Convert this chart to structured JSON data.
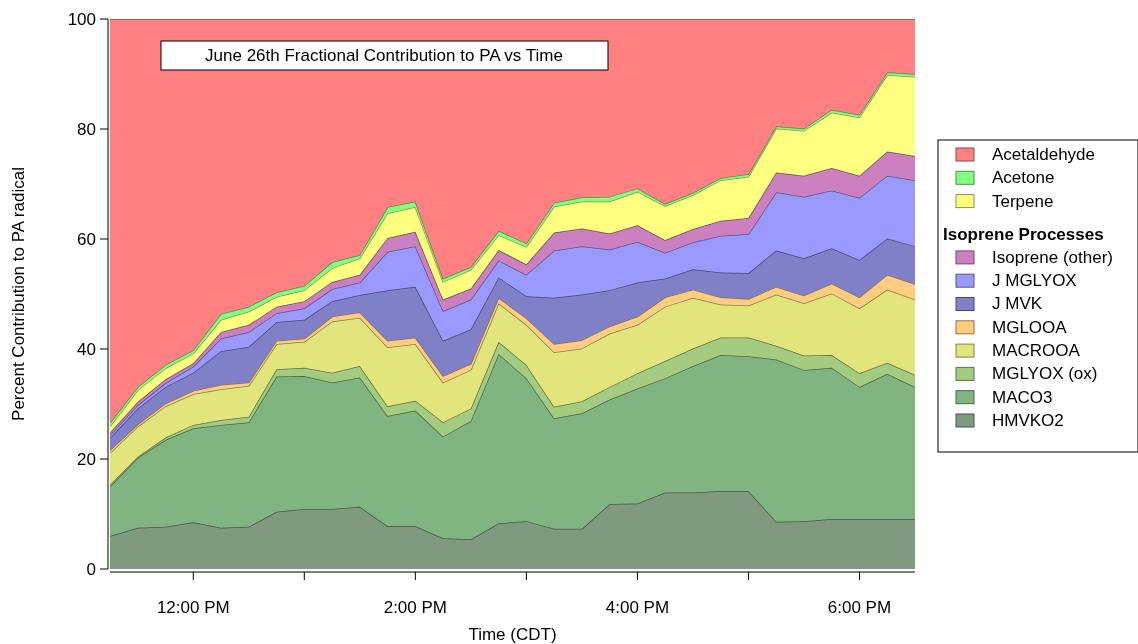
{
  "chart_data": {
    "type": "area",
    "stacked": true,
    "title": "June 26th Fractional Contribution to PA vs Time",
    "xlabel": "Time (CDT)",
    "ylabel": "Percent Contribution to PA radical",
    "legend_title": "Isoprene Processes",
    "legend": "right",
    "grid": false,
    "x": [
      11.25,
      11.5,
      11.75,
      12,
      12.25,
      12.5,
      12.75,
      13,
      13.25,
      13.5,
      13.75,
      14,
      14.25,
      14.5,
      14.75,
      15,
      15.25,
      15.5,
      15.75,
      16,
      16.25,
      16.5,
      16.75,
      17,
      17.25,
      17.5,
      17.75,
      18,
      18.25,
      18.5
    ],
    "xlim": [
      11.25,
      18.5
    ],
    "xticks": [
      {
        "value": 12,
        "label": "12:00 PM"
      },
      {
        "value": 13,
        "label": null
      },
      {
        "value": 14,
        "label": "2:00 PM"
      },
      {
        "value": 15,
        "label": null
      },
      {
        "value": 16,
        "label": "4:00 PM"
      },
      {
        "value": 17,
        "label": null
      },
      {
        "value": 18,
        "label": "6:00 PM"
      }
    ],
    "ylim": [
      0,
      100
    ],
    "yticks": [
      0,
      20,
      40,
      60,
      80,
      100
    ],
    "series": [
      {
        "name": "HMVKO2",
        "color": "#7f9a7f",
        "values": [
          6,
          7.5,
          7.7,
          8.5,
          7.5,
          7.7,
          10.4,
          10.9,
          10.9,
          11.3,
          7.8,
          7.8,
          5.6,
          5.4,
          8.3,
          8.7,
          7.3,
          7.3,
          11.8,
          11.9,
          13.9,
          13.9,
          14.2,
          14.2,
          8.6,
          8.7,
          9.1,
          9.1,
          9.1,
          9.1
        ]
      },
      {
        "name": "MACO3",
        "color": "#80b480",
        "values": [
          9,
          12.7,
          15.8,
          17.1,
          18.7,
          19,
          24.6,
          24.2,
          23,
          23.5,
          20,
          21,
          18.5,
          21.5,
          30.8,
          26,
          20.1,
          21,
          19,
          20.9,
          20.8,
          23,
          24.7,
          24.5,
          29.5,
          27.5,
          27.5,
          24,
          26.4,
          24
        ]
      },
      {
        "name": "MGLYOX (ox)",
        "color": "#a4cc80",
        "values": [
          0.3,
          0.2,
          0.4,
          0.6,
          0.9,
          1,
          1.3,
          1.5,
          1.8,
          2.1,
          1.8,
          1.8,
          2.6,
          2.3,
          2.2,
          2.4,
          2.1,
          2.2,
          2.3,
          2.8,
          3.1,
          3.2,
          3.2,
          3.4,
          2.5,
          2.6,
          2.3,
          2.5,
          2,
          2.2
        ]
      },
      {
        "name": "MACROOA",
        "color": "#e2e47c",
        "values": [
          5.8,
          5.5,
          5.7,
          5.6,
          5.6,
          5.6,
          4.6,
          4.7,
          9.3,
          8.8,
          10.7,
          10.3,
          7.2,
          7,
          7,
          7.3,
          9.9,
          9.6,
          9.7,
          8.8,
          9.9,
          9.2,
          6,
          5.8,
          9.3,
          9.5,
          11.2,
          11.8,
          13.3,
          13.7
        ]
      },
      {
        "name": "MGLOOA",
        "color": "#ffcc80",
        "values": [
          0.5,
          0.4,
          0.5,
          0.6,
          0.8,
          0.6,
          0.6,
          0.6,
          0.9,
          1,
          1.2,
          1.2,
          1.2,
          1.1,
          1,
          1.2,
          1.5,
          1.5,
          1.3,
          1.5,
          1.7,
          1.5,
          1.3,
          1.2,
          1.4,
          1.4,
          1.8,
          2,
          2.7,
          2.8
        ]
      },
      {
        "name": "J MVK",
        "color": "#8080c8",
        "values": [
          2.2,
          2.9,
          3,
          3.3,
          6.1,
          6.5,
          3.4,
          3.4,
          2.8,
          3.1,
          9.2,
          9.2,
          6.4,
          6.3,
          3.7,
          4,
          8.4,
          8.3,
          6.6,
          6.2,
          3.4,
          3.7,
          4.5,
          4.7,
          6.6,
          6.8,
          6.4,
          6.8,
          6.6,
          6.9
        ]
      },
      {
        "name": "J MGLYOX",
        "color": "#9999ff",
        "values": [
          0.5,
          0.6,
          0.7,
          1.1,
          2.3,
          2.7,
          1.6,
          2.1,
          2.2,
          2.3,
          7,
          7.4,
          5.4,
          5.4,
          3.1,
          3.9,
          8.6,
          8.8,
          7.4,
          7.4,
          4.7,
          4.9,
          6.7,
          7.1,
          10.6,
          11.2,
          10.5,
          11.3,
          11.4,
          12
        ]
      },
      {
        "name": "Isoprene (other)",
        "color": "#cc80c0",
        "values": [
          0.5,
          0.6,
          0.7,
          0.6,
          1.2,
          1.3,
          1.2,
          1.3,
          1.3,
          1.4,
          2.5,
          2.6,
          2.1,
          2,
          1.9,
          1.9,
          3.3,
          3.2,
          2.9,
          3,
          2.3,
          2.4,
          2.7,
          2.9,
          3.6,
          3.8,
          4.1,
          4,
          4.4,
          4.4
        ]
      },
      {
        "name": "Terpene",
        "color": "#ffff80",
        "values": [
          1.1,
          2.1,
          2,
          1.8,
          2.2,
          2.4,
          1.8,
          2,
          2.5,
          3,
          4.5,
          4.5,
          3.2,
          3.4,
          2.7,
          3.2,
          4.7,
          4.9,
          5.8,
          6.1,
          6.2,
          6.2,
          7.4,
          7.5,
          8,
          8.2,
          10.1,
          10.6,
          13.9,
          14.4
        ]
      },
      {
        "name": "Acetone",
        "color": "#80ff80",
        "values": [
          0.7,
          0.6,
          0.6,
          0.6,
          1.1,
          0.9,
          0.8,
          0.8,
          1.1,
          0.6,
          1.1,
          1,
          0.6,
          0.5,
          0.8,
          0.6,
          0.7,
          0.8,
          0.9,
          0.6,
          0.4,
          0.4,
          0.4,
          0.5,
          0.4,
          0.4,
          0.5,
          0.5,
          0.5,
          0.5
        ]
      },
      {
        "name": "Acetaldehyde",
        "color": "#ff8080",
        "values": [
          73.4,
          66.9,
          62.9,
          60.2,
          53.6,
          52.3,
          49.7,
          48.5,
          44.2,
          42.9,
          34.2,
          33.2,
          47.2,
          45.1,
          38.5,
          40.8,
          33.4,
          32.4,
          32.3,
          30.8,
          33.6,
          31.6,
          28.9,
          28.2,
          19.5,
          19.9,
          16.5,
          17.4,
          9.7,
          10
        ]
      }
    ]
  }
}
